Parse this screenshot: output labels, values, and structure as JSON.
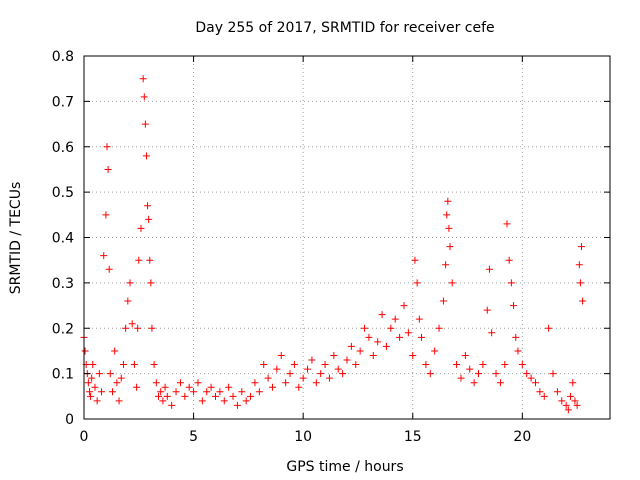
{
  "chart_data": {
    "type": "scatter",
    "title": "Day 255 of 2017, SRMTID for receiver cefe",
    "xlabel": "GPS time / hours",
    "ylabel": "SRMTID / TECUs",
    "xlim": [
      0,
      24
    ],
    "ylim": [
      0,
      0.8
    ],
    "xticks": [
      0,
      5,
      10,
      15,
      20
    ],
    "xtick_labels": [
      "0",
      "5",
      "10",
      "15",
      "20"
    ],
    "yticks": [
      0,
      0.1,
      0.2,
      0.3,
      0.4,
      0.5,
      0.6,
      0.7,
      0.8
    ],
    "ytick_labels": [
      "0",
      "0.1",
      "0.2",
      "0.3",
      "0.4",
      "0.5",
      "0.6",
      "0.7",
      "0.8"
    ],
    "grid": true,
    "marker": "+",
    "color": "#ff0000",
    "series": [
      {
        "name": "SRMTID",
        "x": [
          0.0,
          0.05,
          0.1,
          0.15,
          0.2,
          0.25,
          0.3,
          0.35,
          0.4,
          0.5,
          0.6,
          0.7,
          0.8,
          0.9,
          1.0,
          1.05,
          1.1,
          1.15,
          1.2,
          1.3,
          1.4,
          1.5,
          1.6,
          1.7,
          1.8,
          1.9,
          2.0,
          2.1,
          2.2,
          2.3,
          2.4,
          2.45,
          2.5,
          2.6,
          2.7,
          2.75,
          2.8,
          2.85,
          2.9,
          2.95,
          3.0,
          3.05,
          3.1,
          3.2,
          3.3,
          3.4,
          3.5,
          3.6,
          3.7,
          3.8,
          4.0,
          4.2,
          4.4,
          4.6,
          4.8,
          5.0,
          5.2,
          5.4,
          5.6,
          5.8,
          6.0,
          6.2,
          6.4,
          6.6,
          6.8,
          7.0,
          7.2,
          7.4,
          7.6,
          7.8,
          8.0,
          8.2,
          8.4,
          8.6,
          8.8,
          9.0,
          9.2,
          9.4,
          9.6,
          9.8,
          10.0,
          10.2,
          10.4,
          10.6,
          10.8,
          11.0,
          11.2,
          11.4,
          11.6,
          11.8,
          12.0,
          12.2,
          12.4,
          12.6,
          12.8,
          13.0,
          13.2,
          13.4,
          13.6,
          13.8,
          14.0,
          14.2,
          14.4,
          14.6,
          14.8,
          15.0,
          15.1,
          15.2,
          15.3,
          15.4,
          15.6,
          15.8,
          16.0,
          16.2,
          16.4,
          16.5,
          16.55,
          16.6,
          16.65,
          16.7,
          16.8,
          17.0,
          17.2,
          17.4,
          17.6,
          17.8,
          18.0,
          18.2,
          18.4,
          18.5,
          18.6,
          18.8,
          19.0,
          19.2,
          19.3,
          19.4,
          19.5,
          19.6,
          19.7,
          19.8,
          20.0,
          20.2,
          20.4,
          20.6,
          20.8,
          21.0,
          21.2,
          21.4,
          21.6,
          21.8,
          22.0,
          22.1,
          22.2,
          22.3,
          22.4,
          22.5,
          22.6,
          22.65,
          22.7,
          22.75
        ],
        "y": [
          0.18,
          0.15,
          0.12,
          0.1,
          0.08,
          0.06,
          0.05,
          0.09,
          0.12,
          0.07,
          0.04,
          0.1,
          0.06,
          0.36,
          0.45,
          0.6,
          0.55,
          0.33,
          0.1,
          0.06,
          0.15,
          0.08,
          0.04,
          0.09,
          0.12,
          0.2,
          0.26,
          0.3,
          0.21,
          0.12,
          0.07,
          0.2,
          0.35,
          0.42,
          0.75,
          0.71,
          0.65,
          0.58,
          0.47,
          0.44,
          0.35,
          0.3,
          0.2,
          0.12,
          0.08,
          0.05,
          0.06,
          0.04,
          0.07,
          0.05,
          0.03,
          0.06,
          0.08,
          0.05,
          0.07,
          0.06,
          0.08,
          0.04,
          0.06,
          0.07,
          0.05,
          0.06,
          0.04,
          0.07,
          0.05,
          0.03,
          0.06,
          0.04,
          0.05,
          0.08,
          0.06,
          0.12,
          0.09,
          0.07,
          0.11,
          0.14,
          0.08,
          0.1,
          0.12,
          0.07,
          0.09,
          0.11,
          0.13,
          0.08,
          0.1,
          0.12,
          0.09,
          0.14,
          0.11,
          0.1,
          0.13,
          0.16,
          0.12,
          0.15,
          0.2,
          0.18,
          0.14,
          0.17,
          0.23,
          0.16,
          0.2,
          0.22,
          0.18,
          0.25,
          0.19,
          0.14,
          0.35,
          0.3,
          0.22,
          0.18,
          0.12,
          0.1,
          0.15,
          0.2,
          0.26,
          0.34,
          0.45,
          0.48,
          0.42,
          0.38,
          0.3,
          0.12,
          0.09,
          0.14,
          0.11,
          0.08,
          0.1,
          0.12,
          0.24,
          0.33,
          0.19,
          0.1,
          0.08,
          0.12,
          0.43,
          0.35,
          0.3,
          0.25,
          0.18,
          0.15,
          0.12,
          0.1,
          0.09,
          0.08,
          0.06,
          0.05,
          0.2,
          0.1,
          0.06,
          0.04,
          0.03,
          0.02,
          0.05,
          0.08,
          0.04,
          0.03,
          0.34,
          0.3,
          0.38,
          0.26
        ]
      }
    ]
  }
}
